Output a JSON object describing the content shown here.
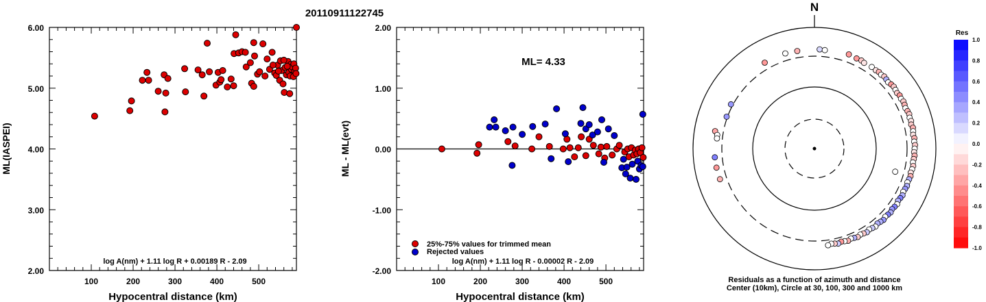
{
  "title": "20110911122745",
  "chart_data": [
    {
      "type": "scatter",
      "xlabel": "Hypocentral distance (km)",
      "ylabel": "ML(IASPEI)",
      "xlim": [
        0,
        590
      ],
      "ylim": [
        2.0,
        6.0
      ],
      "xticks": [
        100,
        200,
        300,
        400,
        500
      ],
      "yticks": [
        "2.00",
        "3.00",
        "4.00",
        "5.00",
        "6.00"
      ],
      "annotation": "log A(nm) + 1.11 log R + 0.00189 R - 2.09",
      "series": [
        {
          "color": "#dd0000",
          "points": [
            [
              108,
              4.54
            ],
            [
              192,
              4.63
            ],
            [
              196,
              4.79
            ],
            [
              222,
              5.13
            ],
            [
              233,
              5.26
            ],
            [
              237,
              5.13
            ],
            [
              260,
              4.95
            ],
            [
              274,
              5.22
            ],
            [
              276,
              4.61
            ],
            [
              278,
              4.92
            ],
            [
              283,
              5.16
            ],
            [
              323,
              5.32
            ],
            [
              325,
              4.94
            ],
            [
              355,
              5.3
            ],
            [
              365,
              5.22
            ],
            [
              369,
              4.87
            ],
            [
              382,
              5.27
            ],
            [
              398,
              5.05
            ],
            [
              403,
              5.26
            ],
            [
              407,
              5.1
            ],
            [
              410,
              5.14
            ],
            [
              414,
              5.29
            ],
            [
              425,
              5.02
            ],
            [
              434,
              5.15
            ],
            [
              440,
              5.04
            ],
            [
              441,
              5.57
            ],
            [
              452,
              5.58
            ],
            [
              460,
              5.6
            ],
            [
              468,
              5.59
            ],
            [
              470,
              5.35
            ],
            [
              480,
              5.42
            ],
            [
              483,
              5.08
            ],
            [
              488,
              5.03
            ],
            [
              490,
              5.53
            ],
            [
              497,
              5.23
            ],
            [
              502,
              5.27
            ],
            [
              515,
              5.2
            ],
            [
              520,
              5.48
            ],
            [
              526,
              5.31
            ],
            [
              532,
              5.59
            ],
            [
              538,
              5.25
            ],
            [
              542,
              5.21
            ],
            [
              545,
              5.38
            ],
            [
              550,
              5.13
            ],
            [
              552,
              5.45
            ],
            [
              555,
              5.29
            ],
            [
              558,
              5.07
            ],
            [
              561,
              4.93
            ],
            [
              563,
              5.34
            ],
            [
              566,
              5.22
            ],
            [
              570,
              5.44
            ],
            [
              572,
              5.26
            ],
            [
              574,
              4.91
            ],
            [
              576,
              5.39
            ],
            [
              578,
              5.31
            ],
            [
              580,
              5.35
            ],
            [
              582,
              5.22
            ],
            [
              584,
              5.4
            ],
            [
              586,
              5.28
            ],
            [
              588,
              5.33
            ],
            [
              445,
              5.88
            ],
            [
              377,
              5.74
            ],
            [
              488,
              5.75
            ],
            [
              510,
              5.73
            ],
            [
              534,
              5.38
            ],
            [
              547,
              5.28
            ],
            [
              560,
              5.46
            ],
            [
              568,
              5.36
            ],
            [
              575,
              5.2
            ],
            [
              583,
              5.19
            ],
            [
              589,
              5.24
            ],
            [
              590,
              6.0
            ]
          ]
        }
      ]
    },
    {
      "type": "scatter",
      "xlabel": "Hypocentral distance (km)",
      "ylabel": "ML - ML(evt)",
      "xlim": [
        0,
        590
      ],
      "ylim": [
        -2.0,
        2.0
      ],
      "xticks": [
        100,
        200,
        300,
        400,
        500
      ],
      "yticks": [
        "-2.00",
        "-1.00",
        "0.00",
        "1.00",
        "2.00"
      ],
      "reference_line": 0,
      "ml_label": "ML=  4.33",
      "annotation": "log A(nm) + 1.11 log R - 0.00002 R - 2.09",
      "legend": [
        "25%-75% values for trimmed mean",
        "Rejected values"
      ],
      "series": [
        {
          "name": "25%-75% values for trimmed mean",
          "color": "#dd0000",
          "points": [
            [
              108,
              0.0
            ],
            [
              192,
              -0.07
            ],
            [
              196,
              0.07
            ],
            [
              266,
              0.12
            ],
            [
              283,
              0.05
            ],
            [
              323,
              0.0
            ],
            [
              340,
              0.2
            ],
            [
              365,
              0.04
            ],
            [
              398,
              0.0
            ],
            [
              407,
              0.16
            ],
            [
              414,
              0.02
            ],
            [
              425,
              -0.13
            ],
            [
              434,
              0.02
            ],
            [
              441,
              0.2
            ],
            [
              452,
              -0.11
            ],
            [
              460,
              0.16
            ],
            [
              470,
              0.06
            ],
            [
              483,
              -0.08
            ],
            [
              488,
              0.03
            ],
            [
              497,
              -0.15
            ],
            [
              502,
              0.04
            ],
            [
              515,
              -0.1
            ],
            [
              526,
              0.0
            ],
            [
              532,
              0.06
            ],
            [
              545,
              -0.05
            ],
            [
              552,
              0.0
            ],
            [
              555,
              -0.13
            ],
            [
              561,
              0.02
            ],
            [
              566,
              -0.1
            ],
            [
              570,
              -0.02
            ],
            [
              574,
              -0.08
            ],
            [
              578,
              0.0
            ],
            [
              582,
              -0.06
            ],
            [
              586,
              0.02
            ],
            [
              589,
              -0.14
            ]
          ]
        },
        {
          "name": "Rejected values",
          "color": "#0000cc",
          "points": [
            [
              222,
              0.36
            ],
            [
              233,
              0.48
            ],
            [
              237,
              0.36
            ],
            [
              260,
              0.3
            ],
            [
              276,
              -0.27
            ],
            [
              278,
              0.36
            ],
            [
              300,
              0.24
            ],
            [
              325,
              0.37
            ],
            [
              355,
              0.41
            ],
            [
              369,
              -0.16
            ],
            [
              382,
              0.66
            ],
            [
              403,
              0.25
            ],
            [
              410,
              -0.21
            ],
            [
              440,
              0.42
            ],
            [
              445,
              0.68
            ],
            [
              452,
              0.33
            ],
            [
              460,
              0.4
            ],
            [
              468,
              0.23
            ],
            [
              480,
              0.28
            ],
            [
              490,
              0.48
            ],
            [
              495,
              -0.22
            ],
            [
              506,
              0.33
            ],
            [
              520,
              0.22
            ],
            [
              538,
              -0.31
            ],
            [
              542,
              -0.17
            ],
            [
              547,
              -0.41
            ],
            [
              550,
              -0.3
            ],
            [
              558,
              -0.48
            ],
            [
              563,
              -0.25
            ],
            [
              572,
              -0.5
            ],
            [
              576,
              -0.2
            ],
            [
              580,
              -0.33
            ],
            [
              584,
              -0.27
            ],
            [
              588,
              -0.29
            ],
            [
              588,
              0.57
            ]
          ]
        }
      ]
    },
    {
      "type": "scatter",
      "subtype": "polar-residual-map",
      "north_label": "N",
      "caption_line1": "Residuals as a function of azimuth and distance",
      "caption_line2": "Center (10km), Circle at 30, 100, 300 and 1000 km",
      "colorbar_title": "Res",
      "colorbar_ticks": [
        "1.0",
        "0.8",
        "0.6",
        "0.4",
        "0.2",
        "0.0",
        "-0.2",
        "-0.4",
        "-0.6",
        "-0.8",
        "-1.0"
      ],
      "distance_circles_km": [
        30,
        100,
        300,
        1000
      ],
      "points": [
        [
          -30,
          466,
          -0.4
        ],
        [
          -17,
          472,
          0.0
        ],
        [
          -10,
          462,
          -0.3
        ],
        [
          3,
          468,
          0.15
        ],
        [
          6,
          460,
          0.0
        ],
        [
          -62,
          348,
          0.4
        ],
        [
          -70,
          320,
          0.4
        ],
        [
          -80,
          500,
          -0.35
        ],
        [
          -82,
          435,
          0.0
        ],
        [
          -84,
          432,
          0.0
        ],
        [
          -95,
          480,
          0.5
        ],
        [
          -101,
          475,
          -0.4
        ],
        [
          -108,
          463,
          -0.3
        ],
        [
          20,
          490,
          -0.4
        ],
        [
          25,
          472,
          -0.4
        ],
        [
          28,
          480,
          -0.2
        ],
        [
          30,
          460,
          -0.1
        ],
        [
          35,
          475,
          0.0
        ],
        [
          38,
          470,
          -0.1
        ],
        [
          40,
          485,
          -0.3
        ],
        [
          42,
          470,
          0.0
        ],
        [
          44,
          490,
          -0.2
        ],
        [
          46,
          475,
          0.3
        ],
        [
          48,
          460,
          0.0
        ],
        [
          50,
          482,
          -0.4
        ],
        [
          52,
          496,
          -0.2
        ],
        [
          54,
          484,
          0.0
        ],
        [
          56,
          470,
          -0.2
        ],
        [
          58,
          490,
          -0.4
        ],
        [
          60,
          478,
          0.0
        ],
        [
          62,
          496,
          -0.2
        ],
        [
          64,
          485,
          -0.3
        ],
        [
          66,
          470,
          0.0
        ],
        [
          68,
          488,
          -0.3
        ],
        [
          70,
          500,
          -0.2
        ],
        [
          72,
          480,
          0.0
        ],
        [
          74,
          492,
          -0.1
        ],
        [
          76,
          472,
          -0.2
        ],
        [
          78,
          495,
          -0.3
        ],
        [
          80,
          484,
          0.0
        ],
        [
          82,
          470,
          -0.1
        ],
        [
          84,
          490,
          -0.3
        ],
        [
          86,
          478,
          0.0
        ],
        [
          88,
          494,
          -0.2
        ],
        [
          90,
          484,
          0.0
        ],
        [
          92,
          472,
          -0.1
        ],
        [
          94,
          488,
          -0.3
        ],
        [
          96,
          476,
          -0.2
        ],
        [
          98,
          464,
          0.0
        ],
        [
          100,
          486,
          -0.2
        ],
        [
          102,
          474,
          0.0
        ],
        [
          104,
          460,
          -0.1
        ],
        [
          106,
          478,
          -0.3
        ],
        [
          108,
          466,
          0.3
        ],
        [
          110,
          452,
          0.0
        ],
        [
          112,
          474,
          0.3
        ],
        [
          114,
          460,
          0.4
        ],
        [
          116,
          448,
          0.0
        ],
        [
          118,
          472,
          0.3
        ],
        [
          120,
          458,
          0.5
        ],
        [
          122,
          444,
          0.3
        ],
        [
          124,
          470,
          0.0
        ],
        [
          126,
          456,
          0.5
        ],
        [
          128,
          442,
          0.4
        ],
        [
          130,
          466,
          0.3
        ],
        [
          132,
          452,
          0.5
        ],
        [
          134,
          438,
          0.0
        ],
        [
          136,
          462,
          0.4
        ],
        [
          138,
          446,
          0.3
        ],
        [
          140,
          430,
          0.3
        ],
        [
          142,
          456,
          0.0
        ],
        [
          144,
          440,
          0.2
        ],
        [
          146,
          424,
          0.0
        ],
        [
          148,
          450,
          0.2
        ],
        [
          150,
          434,
          -0.2
        ],
        [
          152,
          420,
          0.0
        ],
        [
          154,
          444,
          -0.2
        ],
        [
          156,
          428,
          0.3
        ],
        [
          158,
          412,
          0.0
        ],
        [
          160,
          438,
          -0.3
        ],
        [
          162,
          420,
          0.0
        ],
        [
          164,
          406,
          -0.4
        ],
        [
          166,
          432,
          0.2
        ],
        [
          168,
          414,
          -0.2
        ],
        [
          170,
          400,
          0.0
        ],
        [
          172,
          424,
          0.0
        ],
        [
          106,
          244,
          0.0
        ]
      ]
    }
  ]
}
